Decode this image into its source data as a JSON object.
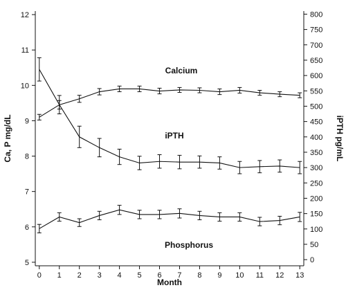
{
  "chart_data": {
    "type": "line",
    "xlabel": "Month",
    "ylabel_left": "Ca, P mg/dL",
    "ylabel_right": "iPTH pg/mL",
    "x": [
      0,
      1,
      2,
      3,
      4,
      5,
      6,
      7,
      8,
      9,
      10,
      11,
      12,
      13
    ],
    "xlim": [
      -0.2,
      13.2
    ],
    "ylim_left": [
      4.9,
      12.1
    ],
    "ylim_right": [
      -20,
      810
    ],
    "left_ticks": [
      5,
      6,
      7,
      8,
      9,
      10,
      11,
      12
    ],
    "right_ticks": [
      0,
      50,
      100,
      150,
      200,
      250,
      300,
      350,
      400,
      450,
      500,
      550,
      600,
      650,
      700,
      750,
      800
    ],
    "x_ticks": [
      0,
      1,
      2,
      3,
      4,
      5,
      6,
      7,
      8,
      9,
      10,
      11,
      12,
      13
    ],
    "series": [
      {
        "name": "Calcium",
        "axis": "left",
        "values": [
          9.1,
          9.45,
          9.62,
          9.82,
          9.9,
          9.9,
          9.84,
          9.87,
          9.86,
          9.82,
          9.86,
          9.79,
          9.75,
          9.72
        ],
        "error": [
          0.08,
          0.12,
          0.1,
          0.09,
          0.08,
          0.08,
          0.08,
          0.07,
          0.07,
          0.08,
          0.08,
          0.07,
          0.07,
          0.07
        ]
      },
      {
        "name": "iPTH",
        "axis": "right",
        "values": [
          620,
          505,
          400,
          365,
          335,
          315,
          320,
          318,
          318,
          315,
          300,
          303,
          305,
          300
        ],
        "error": [
          38,
          30,
          35,
          30,
          25,
          22,
          22,
          22,
          20,
          20,
          20,
          20,
          20,
          20
        ]
      },
      {
        "name": "Phosphorus",
        "axis": "left",
        "values": [
          5.95,
          6.28,
          6.12,
          6.32,
          6.48,
          6.35,
          6.35,
          6.38,
          6.32,
          6.28,
          6.28,
          6.15,
          6.18,
          6.28
        ],
        "error": [
          0.12,
          0.12,
          0.11,
          0.12,
          0.13,
          0.12,
          0.12,
          0.13,
          0.12,
          0.12,
          0.12,
          0.12,
          0.12,
          0.13
        ]
      }
    ]
  }
}
